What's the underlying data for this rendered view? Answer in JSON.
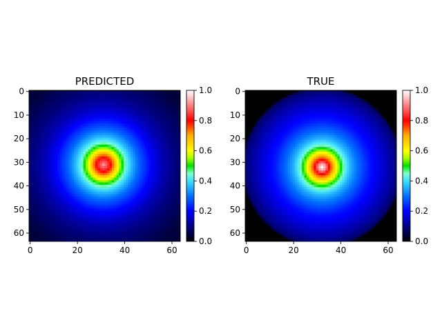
{
  "chart_data": [
    {
      "type": "heatmap",
      "title": "PREDICTED",
      "grid_size": 64,
      "center": [
        31,
        31
      ],
      "extent": [
        0,
        64
      ],
      "xticks": [
        0,
        20,
        40,
        60
      ],
      "yticks": [
        0,
        10,
        20,
        30,
        40,
        50,
        60
      ],
      "profile": {
        "r": [
          0,
          1.5,
          3,
          5,
          7,
          8.5,
          10,
          12,
          15,
          20,
          25,
          30,
          40,
          50
        ],
        "value": [
          0.92,
          0.86,
          0.8,
          0.68,
          0.55,
          0.48,
          0.42,
          0.36,
          0.29,
          0.2,
          0.14,
          0.1,
          0.05,
          0.03
        ]
      },
      "background": 0.0,
      "colorbar": {
        "vmin": 0.0,
        "vmax": 1.0,
        "ticks": [
          "0.0",
          "0.2",
          "0.4",
          "0.6",
          "0.8",
          "1.0"
        ]
      }
    },
    {
      "type": "heatmap",
      "title": "TRUE",
      "grid_size": 64,
      "center": [
        32,
        32
      ],
      "extent": [
        0,
        64
      ],
      "xticks": [
        0,
        20,
        40,
        60
      ],
      "yticks": [
        0,
        10,
        20,
        30,
        40,
        50,
        60
      ],
      "profile": {
        "r": [
          0,
          1.5,
          3,
          5,
          7,
          8.5,
          10,
          12,
          15,
          20,
          25,
          30,
          33,
          34
        ],
        "value": [
          1.0,
          0.92,
          0.8,
          0.68,
          0.55,
          0.48,
          0.42,
          0.36,
          0.3,
          0.22,
          0.17,
          0.12,
          0.08,
          0.0
        ]
      },
      "background": 0.0,
      "colorbar": {
        "vmin": 0.0,
        "vmax": 1.0,
        "ticks": [
          "0.0",
          "0.2",
          "0.4",
          "0.6",
          "0.8",
          "1.0"
        ]
      }
    }
  ],
  "colormap": {
    "name": "gist_ncar-like",
    "stops": [
      [
        0.0,
        "#000000"
      ],
      [
        0.1,
        "#000080"
      ],
      [
        0.2,
        "#0000ff"
      ],
      [
        0.3,
        "#0070ff"
      ],
      [
        0.4,
        "#40e0ff"
      ],
      [
        0.45,
        "#80ffd0"
      ],
      [
        0.5,
        "#00e000"
      ],
      [
        0.55,
        "#a0ff00"
      ],
      [
        0.6,
        "#ffff00"
      ],
      [
        0.7,
        "#ffb000"
      ],
      [
        0.8,
        "#ff0000"
      ],
      [
        0.9,
        "#ff8080"
      ],
      [
        1.0,
        "#ffffff"
      ]
    ]
  }
}
